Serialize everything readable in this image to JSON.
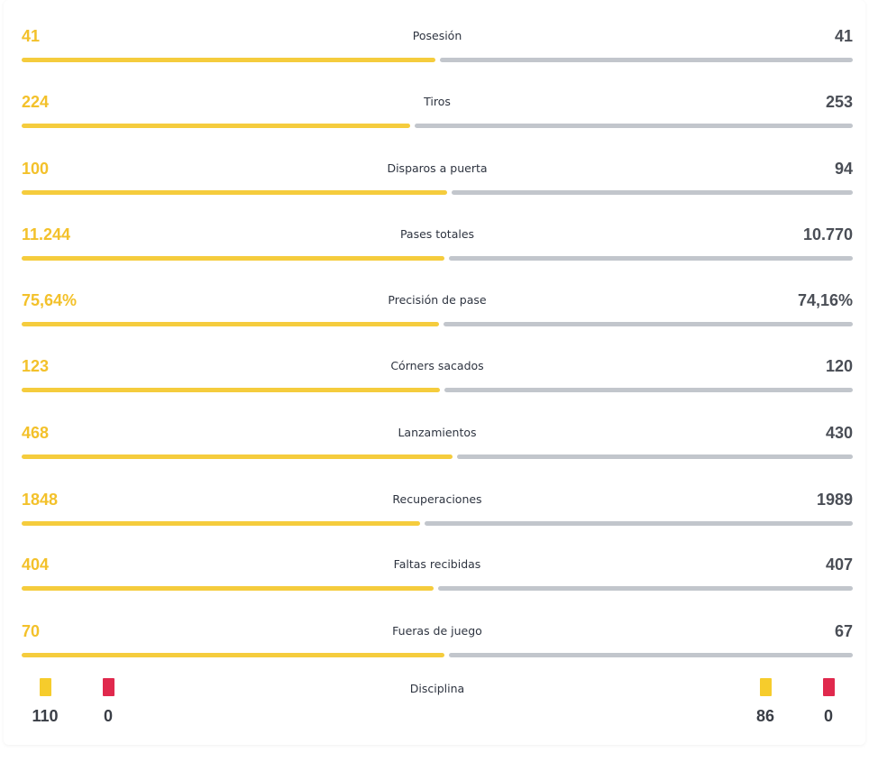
{
  "colors": {
    "home": "#f5cc3d",
    "away": "#c2c6cc",
    "yellow_card": "#f6cc2c",
    "red_card": "#e0294d"
  },
  "stats": [
    {
      "label": "Posesión",
      "left": "41",
      "right": "41",
      "share": 0.5
    },
    {
      "label": "Tiros",
      "left": "224",
      "right": "253",
      "share": 0.47
    },
    {
      "label": "Disparos a puerta",
      "left": "100",
      "right": "94",
      "share": 0.515
    },
    {
      "label": "Pases totales",
      "left": "11.244",
      "right": "10.770",
      "share": 0.511
    },
    {
      "label": "Precisión de pase",
      "left": "75,64%",
      "right": "74,16%",
      "share": 0.505
    },
    {
      "label": "Córners sacados",
      "left": "123",
      "right": "120",
      "share": 0.506
    },
    {
      "label": "Lanzamientos",
      "left": "468",
      "right": "430",
      "share": 0.521
    },
    {
      "label": "Recuperaciones",
      "left": "1848",
      "right": "1989",
      "share": 0.482
    },
    {
      "label": "Faltas recibidas",
      "left": "404",
      "right": "407",
      "share": 0.498
    },
    {
      "label": "Fueras de juego",
      "left": "70",
      "right": "67",
      "share": 0.511
    }
  ],
  "discipline": {
    "label": "Disciplina",
    "home_yellow": "110",
    "home_red": "0",
    "away_yellow": "86",
    "away_red": "0"
  }
}
